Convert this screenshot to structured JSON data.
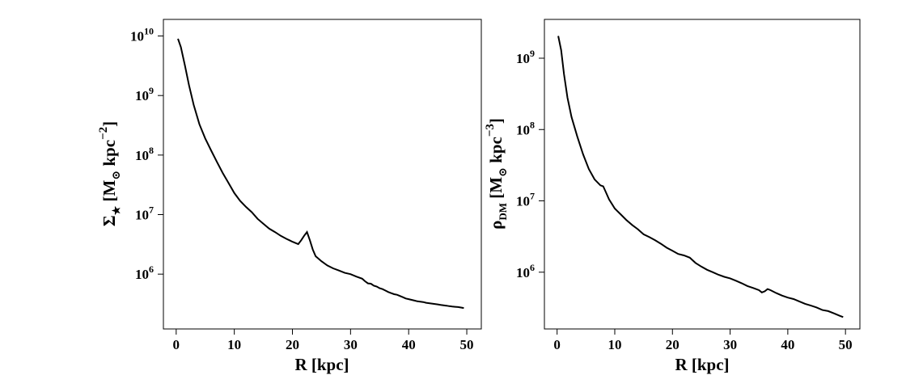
{
  "chart_data": [
    {
      "type": "line",
      "xlabel": "R [kpc]",
      "ylabel_parts": {
        "symbol": "Σ",
        "sub": "★",
        "unit_open": " [M",
        "sun": "⊙",
        "unit_mid": " kpc",
        "exp": "−2",
        "close": "]"
      },
      "xlim": [
        -2.2,
        52.5
      ],
      "ylim": [
        120000,
        19000000000
      ],
      "yscale": "log",
      "xticks": [
        0,
        10,
        20,
        30,
        40,
        50
      ],
      "yticks": [
        {
          "value": 1000000,
          "base": "10",
          "exp": "6"
        },
        {
          "value": 10000000,
          "base": "10",
          "exp": "7"
        },
        {
          "value": 100000000,
          "base": "10",
          "exp": "8"
        },
        {
          "value": 1000000000,
          "base": "10",
          "exp": "9"
        },
        {
          "value": 10000000000,
          "base": "10",
          "exp": "10"
        }
      ],
      "grid": false,
      "series": [
        {
          "x": [
            0.3,
            0.8,
            1.5,
            2.2,
            3.0,
            4.0,
            5.0,
            6.0,
            7.0,
            8.0,
            9.0,
            10.0,
            11.0,
            12.0,
            13.0,
            14.0,
            15.0,
            16.0,
            17.0,
            18.0,
            19.0,
            19.5,
            20.0,
            21.0,
            21.5,
            22.0,
            22.5,
            23.0,
            23.5,
            24.0,
            25.0,
            26.0,
            27.0,
            28.0,
            29.0,
            30.0,
            31.0,
            32.0,
            32.5,
            33.0,
            33.5,
            34.0,
            34.5,
            35.0,
            35.5,
            36.0,
            36.5,
            37.0,
            37.5,
            38.0,
            38.5,
            39.0,
            39.5,
            40.0,
            40.5,
            41.0,
            41.5,
            42.0,
            42.5,
            43.0,
            43.5,
            44.0,
            44.5,
            45.0,
            45.5,
            46.0,
            46.5,
            47.0,
            47.5,
            48.0,
            48.5,
            49.0,
            49.5
          ],
          "y": [
            9000000000,
            6500000000,
            3200000000,
            1500000000,
            700000000,
            330000000,
            190000000,
            120000000,
            77000000,
            50000000,
            34000000,
            23000000,
            17000000,
            13500000,
            11000000,
            8500000,
            7000000,
            5800000,
            5100000,
            4400000,
            3900000,
            3700000,
            3500000,
            3200000,
            3700000,
            4400000,
            5100000,
            3700000,
            2600000,
            2000000,
            1650000,
            1400000,
            1250000,
            1150000,
            1050000,
            1000000,
            910000,
            840000,
            760000,
            700000,
            690000,
            640000,
            620000,
            580000,
            560000,
            530000,
            500000,
            480000,
            460000,
            450000,
            430000,
            410000,
            390000,
            380000,
            370000,
            360000,
            350000,
            345000,
            340000,
            330000,
            325000,
            320000,
            315000,
            310000,
            305000,
            300000,
            295000,
            290000,
            285000,
            283000,
            280000,
            275000,
            270000
          ]
        }
      ]
    },
    {
      "type": "line",
      "xlabel": "R [kpc]",
      "ylabel_parts": {
        "symbol": "ρ",
        "sub": "DM",
        "unit_open": " [M",
        "sun": "⊙",
        "unit_mid": " kpc",
        "exp": "−3",
        "close": "]"
      },
      "xlim": [
        -2.2,
        52.5
      ],
      "ylim": [
        160000,
        3500000000
      ],
      "yscale": "log",
      "xticks": [
        0,
        10,
        20,
        30,
        40,
        50
      ],
      "yticks": [
        {
          "value": 1000000,
          "base": "10",
          "exp": "6"
        },
        {
          "value": 10000000,
          "base": "10",
          "exp": "7"
        },
        {
          "value": 100000000,
          "base": "10",
          "exp": "8"
        },
        {
          "value": 1000000000,
          "base": "10",
          "exp": "9"
        }
      ],
      "grid": false,
      "series": [
        {
          "x": [
            0.2,
            0.7,
            1.2,
            1.8,
            2.5,
            3.5,
            4.5,
            5.5,
            6.5,
            7.5,
            8.0,
            8.5,
            9.0,
            10.0,
            11.0,
            12.0,
            13.0,
            14.0,
            15.0,
            16.0,
            17.0,
            18.0,
            19.0,
            20.0,
            21.0,
            22.0,
            23.0,
            24.0,
            25.0,
            26.0,
            27.0,
            28.0,
            29.0,
            30.0,
            31.0,
            32.0,
            33.0,
            34.0,
            35.0,
            35.5,
            36.0,
            36.5,
            37.0,
            38.0,
            39.0,
            40.0,
            41.0,
            42.0,
            43.0,
            44.0,
            45.0,
            46.0,
            47.0,
            48.0,
            49.0,
            49.6
          ],
          "y": [
            2050000000,
            1300000000,
            600000000,
            280000000,
            150000000,
            80000000,
            45000000,
            28000000,
            20000000,
            16500000,
            16000000,
            13000000,
            10500000,
            7800000,
            6500000,
            5400000,
            4600000,
            4000000,
            3400000,
            3100000,
            2800000,
            2500000,
            2200000,
            2000000,
            1800000,
            1720000,
            1600000,
            1350000,
            1200000,
            1080000,
            1000000,
            920000,
            860000,
            820000,
            760000,
            700000,
            640000,
            600000,
            560000,
            520000,
            540000,
            580000,
            560000,
            510000,
            470000,
            440000,
            420000,
            390000,
            360000,
            340000,
            320000,
            295000,
            285000,
            265000,
            245000,
            235000
          ]
        }
      ]
    }
  ]
}
